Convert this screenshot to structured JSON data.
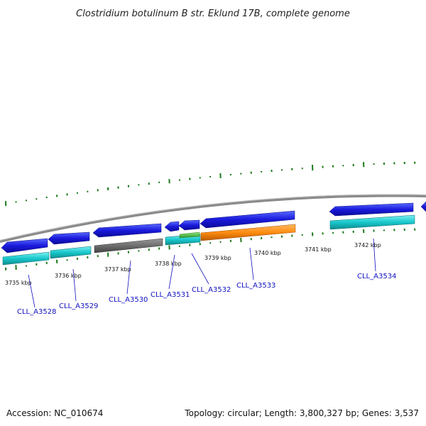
{
  "title": "Clostridium botulinum B str. Eklund 17B, complete genome",
  "footer": {
    "accession": "Accession: NC_010674",
    "summary": "Topology: circular; Length: 3,800,327 bp; Genes: 3,537"
  },
  "colors": {
    "forward_cds": "#1a1adc",
    "forward_cds_light": "#4a5cff",
    "reverse_cds": "#18c8cc",
    "pseudo_gene": "#6e6e6e",
    "rna_gene": "#ff8c10",
    "rna_small": "#44c43a",
    "backbone": "#8a8a8a",
    "gc_skew_ticks": "#1c7a1c",
    "label": "#1010c0"
  },
  "kbp_ticks": [
    "3735 kbp",
    "3736 kbp",
    "3737 kbp",
    "3738 kbp",
    "3739 kbp",
    "3740 kbp",
    "3741 kbp",
    "3742 kbp"
  ],
  "genes": [
    {
      "label": "CLL_A3528"
    },
    {
      "label": "CLL_A3529"
    },
    {
      "label": "CLL_A3530"
    },
    {
      "label": "CLL_A3531"
    },
    {
      "label": "CLL_A3532"
    },
    {
      "label": "CLL_A3533"
    },
    {
      "label": "CLL_A3534"
    }
  ]
}
